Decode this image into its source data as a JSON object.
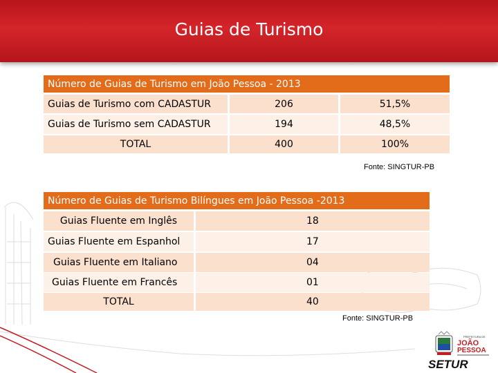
{
  "page": {
    "title": "Guias de Turismo"
  },
  "table1": {
    "title": "Número de Guias de Turismo em João Pessoa - 2013",
    "rows": [
      {
        "label": "Guias de Turismo com CADASTUR",
        "value": "206",
        "percent": "51,5%"
      },
      {
        "label": "Guias de Turismo sem CADASTUR",
        "value": "194",
        "percent": "48,5%"
      },
      {
        "label": "TOTAL",
        "value": "400",
        "percent": "100%"
      }
    ],
    "source": "Fonte: SINGTUR-PB"
  },
  "table2": {
    "title": "Número de Guias de Turismo Bilíngues em João Pessoa -2013",
    "rows": [
      {
        "label": "Guias Fluente em Inglês",
        "value": "18"
      },
      {
        "label": "Guias Fluente em Espanhol",
        "value": "17"
      },
      {
        "label": "Guias Fluente em Italiano",
        "value": "04"
      },
      {
        "label": "Guias Fluente em Francês",
        "value": "01"
      },
      {
        "label": "TOTAL",
        "value": "40"
      }
    ],
    "source": "Fonte: SINGTUR-PB"
  },
  "logo": {
    "line1": "PREFEITURA DE",
    "line2": "JOÃO",
    "line3": "PESSOA",
    "brand": "SETUR"
  },
  "colors": {
    "header_red": "#c81e24",
    "table_header": "#e36c1a",
    "row_light": "#fdf0e6",
    "row_dark": "#fbe0cd"
  }
}
